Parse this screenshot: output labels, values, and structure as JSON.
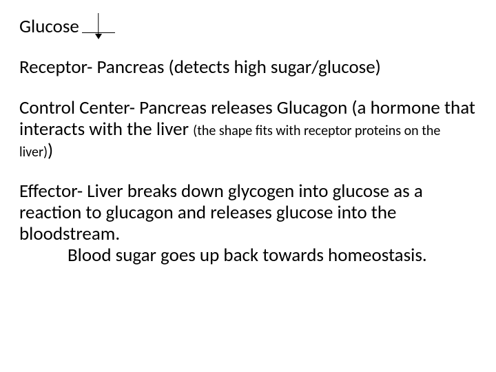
{
  "typography": {
    "font_family": "Calibri",
    "base_size_pt": 27,
    "small_size_pt": 20,
    "text_color": "#000000",
    "background_color": "#ffffff"
  },
  "line1": {
    "label": "Glucose",
    "arrow": {
      "shape": "down-arrow-on-baseline",
      "color": "#000000"
    }
  },
  "receptor": {
    "text": "Receptor- Pancreas (detects high sugar/glucose)"
  },
  "control": {
    "part1": "Control Center- Pancreas releases Glucagon (a hormone that interacts with the liver ",
    "small": "(the shape fits with receptor proteins on the liver)",
    "part2": ")"
  },
  "effector": {
    "part1": "Effector- Liver breaks down glycogen into glucose as a reaction to glucagon and releases glucose into the bloodstream.",
    "part2": "Blood sugar goes up back towards homeostasis."
  }
}
